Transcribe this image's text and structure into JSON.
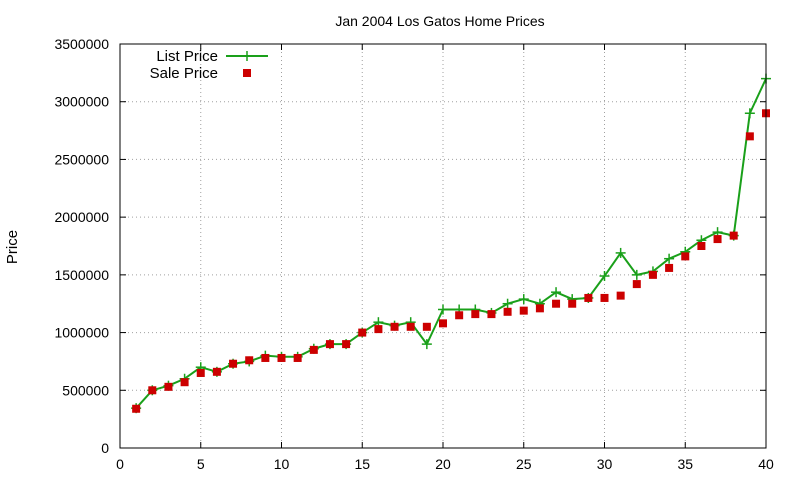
{
  "chart_data": {
    "type": "line",
    "title": "Jan 2004 Los Gatos Home Prices",
    "xlabel": "",
    "ylabel": "Price",
    "xlim": [
      0,
      40
    ],
    "ylim": [
      0,
      3500000
    ],
    "xticks": [
      0,
      5,
      10,
      15,
      20,
      25,
      30,
      35,
      40
    ],
    "yticks": [
      0,
      500000,
      1000000,
      1500000,
      2000000,
      2500000,
      3000000,
      3500000
    ],
    "grid": true,
    "legend_position": "top-left",
    "x": [
      1,
      2,
      3,
      4,
      5,
      6,
      7,
      8,
      9,
      10,
      11,
      12,
      13,
      14,
      15,
      16,
      17,
      18,
      19,
      20,
      21,
      22,
      23,
      24,
      25,
      26,
      27,
      28,
      29,
      30,
      31,
      32,
      33,
      34,
      35,
      36,
      37,
      38,
      39,
      40
    ],
    "series": [
      {
        "name": "List Price",
        "style": "line-cross",
        "color": "#1aa01a",
        "values": [
          345000,
          500000,
          540000,
          600000,
          700000,
          660000,
          730000,
          750000,
          800000,
          790000,
          790000,
          860000,
          900000,
          900000,
          1000000,
          1090000,
          1060000,
          1090000,
          900000,
          1200000,
          1200000,
          1200000,
          1170000,
          1250000,
          1290000,
          1250000,
          1350000,
          1290000,
          1300000,
          1490000,
          1690000,
          1500000,
          1530000,
          1640000,
          1700000,
          1800000,
          1870000,
          1840000,
          2900000,
          3200000
        ]
      },
      {
        "name": "Sale Price",
        "style": "square",
        "color": "#cc0000",
        "values": [
          340000,
          500000,
          530000,
          570000,
          650000,
          660000,
          730000,
          760000,
          780000,
          780000,
          780000,
          850000,
          900000,
          900000,
          1000000,
          1030000,
          1050000,
          1050000,
          1050000,
          1080000,
          1150000,
          1160000,
          1160000,
          1180000,
          1190000,
          1210000,
          1250000,
          1250000,
          1300000,
          1300000,
          1320000,
          1420000,
          1500000,
          1560000,
          1660000,
          1750000,
          1810000,
          1840000,
          2700000,
          2900000
        ]
      }
    ]
  }
}
